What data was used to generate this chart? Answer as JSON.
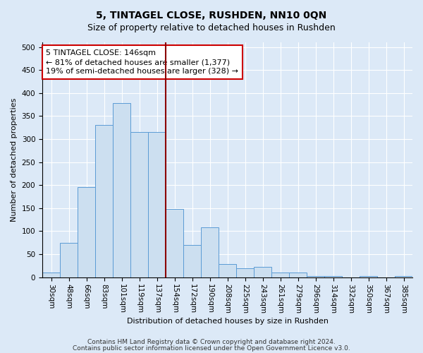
{
  "title": "5, TINTAGEL CLOSE, RUSHDEN, NN10 0QN",
  "subtitle": "Size of property relative to detached houses in Rushden",
  "xlabel": "Distribution of detached houses by size in Rushden",
  "ylabel": "Number of detached properties",
  "bar_labels": [
    "30sqm",
    "48sqm",
    "66sqm",
    "83sqm",
    "101sqm",
    "119sqm",
    "137sqm",
    "154sqm",
    "172sqm",
    "190sqm",
    "208sqm",
    "225sqm",
    "243sqm",
    "261sqm",
    "279sqm",
    "296sqm",
    "314sqm",
    "332sqm",
    "350sqm",
    "367sqm",
    "385sqm"
  ],
  "bar_values": [
    10,
    75,
    195,
    330,
    378,
    315,
    315,
    148,
    70,
    108,
    28,
    20,
    22,
    10,
    10,
    3,
    2,
    0,
    2,
    0,
    2
  ],
  "bar_color": "#ccdff0",
  "bar_edge_color": "#5b9bd5",
  "vline_x": 6.5,
  "vline_color": "#8b0000",
  "annotation_text": "5 TINTAGEL CLOSE: 146sqm\n← 81% of detached houses are smaller (1,377)\n19% of semi-detached houses are larger (328) →",
  "annotation_box_color": "white",
  "annotation_box_edge_color": "#cc0000",
  "ylim": [
    0,
    510
  ],
  "yticks": [
    0,
    50,
    100,
    150,
    200,
    250,
    300,
    350,
    400,
    450,
    500
  ],
  "footer_line1": "Contains HM Land Registry data © Crown copyright and database right 2024.",
  "footer_line2": "Contains public sector information licensed under the Open Government Licence v3.0.",
  "background_color": "#dce9f7",
  "plot_bg_color": "#dce9f7",
  "title_fontsize": 10,
  "subtitle_fontsize": 9,
  "axis_label_fontsize": 8,
  "tick_fontsize": 7.5,
  "annotation_fontsize": 8,
  "footer_fontsize": 6.5,
  "grid_color": "#ffffff",
  "grid_linewidth": 0.8
}
